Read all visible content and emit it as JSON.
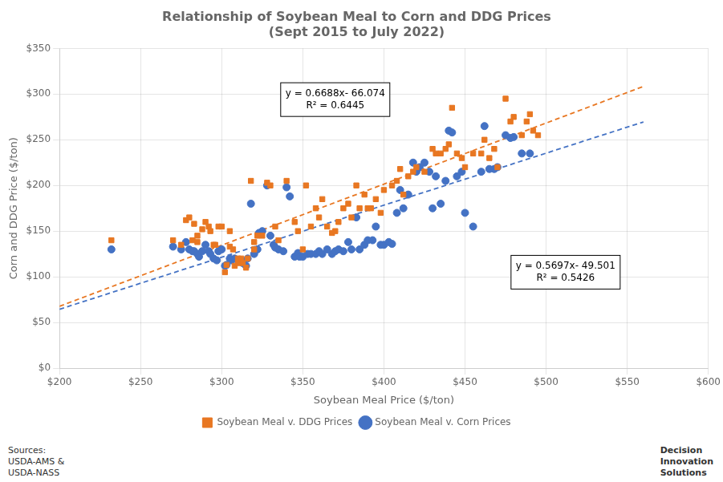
{
  "chart_data": {
    "type": "scatter",
    "title": "Relationship of Soybean Meal to Corn and DDG Prices\n(Sept 2015 to July 2022)",
    "xlabel": "Soybean Meal Price ($/ton)",
    "ylabel": "Corn and DDG Price ($/ton)",
    "xlim": [
      200,
      600
    ],
    "ylim": [
      0,
      350
    ],
    "xticks": [
      {
        "value": 200,
        "label": "$200"
      },
      {
        "value": 250,
        "label": "$250"
      },
      {
        "value": 300,
        "label": "$300"
      },
      {
        "value": 350,
        "label": "$350"
      },
      {
        "value": 400,
        "label": "$400"
      },
      {
        "value": 450,
        "label": "$450"
      },
      {
        "value": 500,
        "label": "$500"
      },
      {
        "value": 550,
        "label": "$550"
      },
      {
        "value": 600,
        "label": "$600"
      }
    ],
    "yticks": [
      {
        "value": 0,
        "label": "$0"
      },
      {
        "value": 50,
        "label": "$50"
      },
      {
        "value": 100,
        "label": "$100"
      },
      {
        "value": 150,
        "label": "$150"
      },
      {
        "value": 200,
        "label": "$200"
      },
      {
        "value": 250,
        "label": "$250"
      },
      {
        "value": 300,
        "label": "$300"
      },
      {
        "value": 350,
        "label": "$350"
      }
    ],
    "grid": true,
    "legend": "bottom",
    "annotations": [
      "y = 0.6688x- 66.074\nR² = 0.6445",
      "y = 0.5697x- 49.501\nR² = 0.5426"
    ],
    "source_text": "Sources:\nUSDA-AMS &\nUSDA-NASS",
    "logo_text": "Decision\nInnovation\nSolutions",
    "series": [
      {
        "name": "Soybean Meal v. DDG Prices",
        "type": "scatter",
        "color": "#E87722",
        "marker": "square",
        "x": [
          232,
          270,
          275,
          278,
          280,
          282,
          283,
          285,
          285,
          288,
          290,
          292,
          293,
          295,
          296,
          298,
          300,
          302,
          303,
          305,
          305,
          307,
          308,
          310,
          310,
          312,
          313,
          315,
          316,
          318,
          320,
          320,
          322,
          325,
          328,
          330,
          333,
          335,
          340,
          345,
          347,
          350,
          352,
          355,
          358,
          360,
          362,
          365,
          368,
          370,
          372,
          375,
          378,
          380,
          383,
          385,
          388,
          390,
          392,
          395,
          398,
          400,
          405,
          408,
          410,
          412,
          415,
          418,
          420,
          425,
          430,
          432,
          435,
          438,
          440,
          442,
          445,
          448,
          450,
          455,
          460,
          462,
          465,
          468,
          470,
          475,
          478,
          480,
          485,
          488,
          490,
          492,
          495
        ],
        "values": [
          140,
          140,
          135,
          162,
          165,
          140,
          158,
          145,
          138,
          152,
          160,
          155,
          150,
          135,
          135,
          155,
          155,
          105,
          113,
          133,
          150,
          130,
          112,
          120,
          115,
          120,
          115,
          110,
          120,
          205,
          130,
          138,
          145,
          145,
          203,
          200,
          155,
          140,
          205,
          160,
          150,
          130,
          200,
          155,
          175,
          165,
          185,
          155,
          148,
          150,
          160,
          175,
          180,
          165,
          200,
          175,
          190,
          175,
          175,
          185,
          170,
          195,
          200,
          205,
          218,
          190,
          210,
          215,
          220,
          215,
          240,
          235,
          235,
          240,
          245,
          285,
          235,
          230,
          220,
          235,
          235,
          250,
          230,
          240,
          220,
          295,
          270,
          275,
          255,
          270,
          278,
          260,
          255
        ]
      },
      {
        "name": "Soybean Meal v. Corn Prices",
        "type": "scatter",
        "color": "#4472C4",
        "marker": "circle",
        "x": [
          232,
          270,
          275,
          278,
          280,
          282,
          283,
          285,
          286,
          288,
          290,
          292,
          293,
          295,
          297,
          298,
          300,
          302,
          303,
          305,
          306,
          308,
          310,
          312,
          313,
          315,
          316,
          318,
          320,
          322,
          323,
          325,
          328,
          330,
          332,
          333,
          335,
          338,
          340,
          342,
          345,
          347,
          348,
          350,
          353,
          355,
          358,
          360,
          362,
          365,
          368,
          370,
          372,
          375,
          378,
          380,
          383,
          385,
          388,
          390,
          393,
          395,
          398,
          400,
          403,
          405,
          408,
          410,
          412,
          415,
          418,
          420,
          422,
          425,
          428,
          430,
          432,
          435,
          438,
          440,
          442,
          445,
          448,
          450,
          455,
          460,
          462,
          465,
          468,
          470,
          475,
          478,
          480,
          485,
          490
        ],
        "values": [
          130,
          133,
          130,
          138,
          130,
          128,
          128,
          125,
          122,
          128,
          135,
          128,
          125,
          120,
          118,
          128,
          130,
          112,
          113,
          120,
          118,
          120,
          118,
          118,
          115,
          112,
          120,
          180,
          125,
          130,
          148,
          150,
          200,
          145,
          135,
          132,
          130,
          128,
          198,
          188,
          122,
          126,
          122,
          122,
          125,
          125,
          125,
          128,
          125,
          130,
          125,
          128,
          130,
          128,
          138,
          130,
          165,
          130,
          135,
          140,
          140,
          155,
          135,
          135,
          138,
          136,
          170,
          195,
          175,
          190,
          225,
          215,
          220,
          225,
          215,
          175,
          210,
          180,
          205,
          260,
          258,
          210,
          215,
          170,
          155,
          215,
          265,
          218,
          218,
          220,
          255,
          252,
          253,
          235,
          235
        ]
      },
      {
        "type": "line",
        "color": "#E87722",
        "line_style": "dashed",
        "x": [
          200,
          560
        ],
        "values": [
          67.686,
          308.454
        ]
      },
      {
        "type": "line",
        "color": "#4472C4",
        "line_style": "dashed",
        "x": [
          200,
          560
        ],
        "values": [
          64.439,
          269.531
        ]
      }
    ]
  }
}
